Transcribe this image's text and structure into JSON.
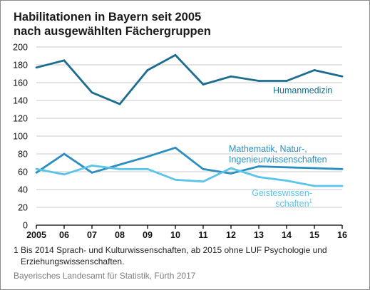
{
  "title": {
    "line1": "Habilitationen in Bayern seit 2005",
    "line2": "nach ausgewählten Fächergruppen"
  },
  "footnote": {
    "number": "1",
    "line1": "Bis 2014 Sprach- und Kulturwissenschaften, ab 2015 ohne LUF Psychologie und",
    "line2": "Erziehungswissenschaften."
  },
  "source": "Bayerisches Landesamt für Statistik, Fürth 2017",
  "colors": {
    "humanmedizin": "#1b6d8f",
    "mathematik": "#2a8fc0",
    "geisteswissenschaften": "#5bc4ea",
    "grid": "#c8c8c8",
    "axis": "#000000"
  },
  "chart_data": {
    "type": "line",
    "x": [
      "2005",
      "06",
      "07",
      "08",
      "09",
      "10",
      "11",
      "12",
      "13",
      "14",
      "15",
      "16"
    ],
    "ylim": [
      0,
      200
    ],
    "yticks": [
      "0",
      "20",
      "40",
      "60",
      "80",
      "100",
      "120",
      "140",
      "160",
      "180",
      "200"
    ],
    "grid": true,
    "series": [
      {
        "key": "humanmedizin",
        "name": "Humanmedizin",
        "label_lines": [
          "Humanmedizin"
        ],
        "values": [
          177,
          185,
          149,
          136,
          174,
          191,
          158,
          167,
          162,
          162,
          174,
          167
        ]
      },
      {
        "key": "mathematik",
        "name": "Mathematik, Natur-, Ingenieurwissenschaften",
        "label_lines": [
          "Mathematik, Natur-,",
          "Ingenieurwissenschaften"
        ],
        "values": [
          59,
          80,
          59,
          68,
          77,
          87,
          63,
          58,
          66,
          65,
          64,
          63
        ]
      },
      {
        "key": "geisteswissenschaften",
        "name": "Geisteswissenschaften",
        "label_lines": [
          "Geisteswissen-",
          "schaften"
        ],
        "label_sup": "1",
        "values": [
          63,
          57,
          67,
          63,
          63,
          51,
          49,
          64,
          54,
          50,
          44,
          44
        ]
      }
    ]
  }
}
